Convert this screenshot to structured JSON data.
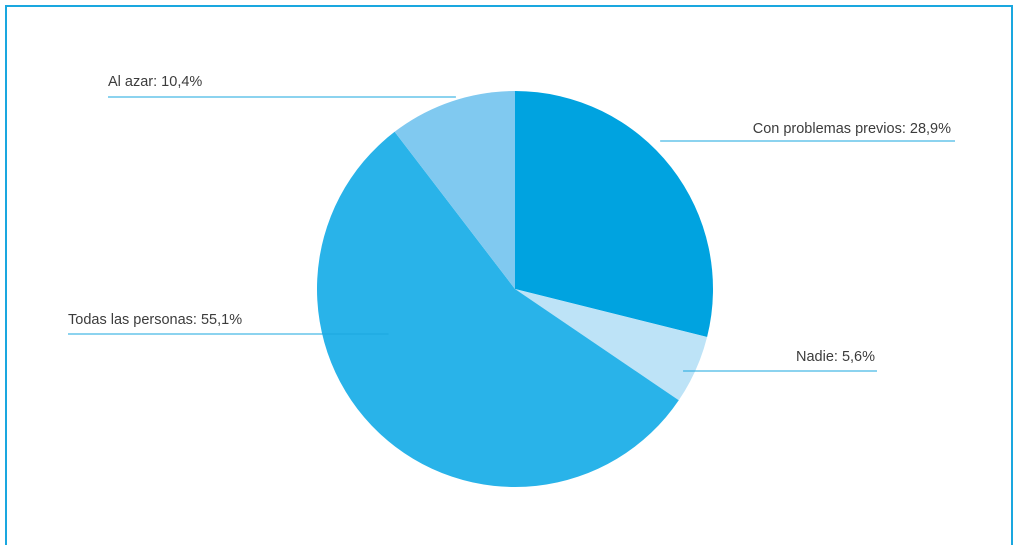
{
  "chart_data": {
    "type": "pie",
    "title": "",
    "slices": [
      {
        "label": "Con problemas previos: 28,9%",
        "value": 28.9,
        "color": "#00a3e0"
      },
      {
        "label": "Nadie: 5,6%",
        "value": 5.6,
        "color": "#bde3f7"
      },
      {
        "label": "Todas las personas: 55,1%",
        "value": 55.1,
        "color": "#29b3e9"
      },
      {
        "label": "Al azar: 10,4%",
        "value": 10.4,
        "color": "#80c9f0"
      }
    ],
    "legend": "callout labels",
    "leader_color": "#1aa7df"
  }
}
